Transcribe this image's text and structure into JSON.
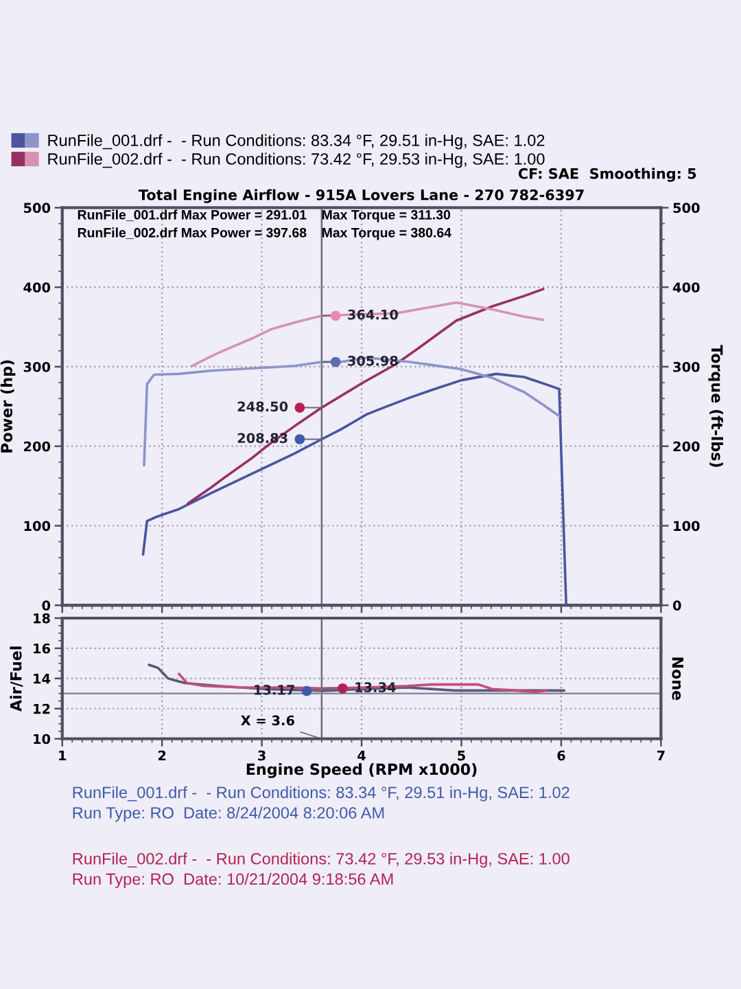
{
  "chart_data": [
    {
      "type": "line",
      "title": "Total Engine Airflow - 915A Lovers Lane - 270 782-6397",
      "ylabel": "Power (hp)",
      "y2label": "Torque (ft-lbs)",
      "xlim": [
        1,
        7
      ],
      "xticks": [
        1,
        2,
        3,
        4,
        5,
        6,
        7
      ],
      "ylim": [
        0,
        500
      ],
      "yticks": [
        0,
        100,
        200,
        300,
        400,
        500
      ],
      "y2lim": [
        0,
        500
      ],
      "y2ticks": [
        0,
        100,
        200,
        300,
        400,
        500
      ],
      "tick_labels": "y",
      "grid": true,
      "legend": "top left",
      "series": [
        {
          "name": "RunFile_001.drf -  - Run Conditions: 83.34 °F, 29.51 in-Hg, SAE: 1.02",
          "color": "#4b55a0",
          "x": [
            1.81,
            1.85,
            1.94,
            2.17,
            2.49,
            2.91,
            3.33,
            3.6,
            3.79,
            4.05,
            4.25,
            4.48,
            4.71,
            5.0,
            5.35,
            5.63,
            5.82,
            5.98,
            6.05
          ],
          "values": [
            64,
            106,
            111,
            121,
            141,
            166,
            191,
            208.83,
            221,
            240,
            250,
            261,
            271,
            283,
            291.01,
            287,
            279,
            272,
            0
          ]
        },
        {
          "axis": "y2",
          "color": "#8e94c8",
          "x": [
            1.82,
            1.85,
            1.92,
            2.17,
            2.49,
            2.91,
            3.33,
            3.6,
            3.79,
            4.05,
            4.25,
            4.48,
            4.71,
            5.0,
            5.31,
            5.63,
            5.82,
            5.98
          ],
          "values": [
            176,
            278,
            290,
            291,
            295,
            298,
            301,
            305.98,
            306,
            311.3,
            309,
            306,
            302,
            297,
            286,
            268,
            252,
            238
          ]
        },
        {
          "name": "RunFile_002.drf -  - Run Conditions: 73.42 °F, 29.53 in-Hg, SAE: 1.00",
          "color": "#983062",
          "x": [
            2.26,
            2.49,
            2.63,
            2.91,
            3.09,
            3.37,
            3.6,
            4.0,
            4.34,
            4.6,
            4.95,
            5.31,
            5.63,
            5.82
          ],
          "values": [
            128,
            148,
            161,
            186,
            204,
            229,
            248.5,
            279,
            303,
            326,
            358,
            376,
            389,
            397.68
          ]
        },
        {
          "axis": "y2",
          "color": "#d692b4",
          "x": [
            2.3,
            2.49,
            2.63,
            2.91,
            3.09,
            3.37,
            3.6,
            4.0,
            4.34,
            4.6,
            4.95,
            5.31,
            5.63,
            5.82
          ],
          "values": [
            301,
            313,
            321,
            336,
            347,
            357,
            364.1,
            366,
            367,
            373,
            380.64,
            372,
            363,
            359
          ]
        },
        {
          "type": "scatter",
          "color": "#3f5aa8",
          "x": [
            3.38
          ],
          "values": [
            208.83
          ],
          "value_labels": [
            "208.83"
          ]
        },
        {
          "type": "scatter",
          "axis": "y2",
          "color": "#5a6cb0",
          "x": [
            3.74
          ],
          "values": [
            305.98
          ],
          "value_labels": [
            "305.98"
          ]
        },
        {
          "type": "scatter",
          "color": "#b3224f",
          "x": [
            3.38
          ],
          "values": [
            248.5
          ],
          "value_labels": [
            "248.50"
          ]
        },
        {
          "type": "scatter",
          "axis": "y2",
          "color": "#e889b0",
          "x": [
            3.74
          ],
          "values": [
            364.1
          ],
          "value_labels": [
            "364.10"
          ]
        }
      ],
      "ref_lines": [
        {
          "axis": "x",
          "value": 3.6,
          "color": "#6a6a7a"
        }
      ],
      "annotations": [
        "CF: SAE  Smoothing: 5",
        "RunFile_001.drf Max Power = 291.01    Max Torque = 311.30",
        "RunFile_002.drf Max Power = 397.68    Max Torque = 380.64"
      ]
    },
    {
      "type": "line",
      "xlabel": "Engine Speed (RPM x1000)",
      "ylabel": "Air/Fuel",
      "y2label": "None",
      "xlim": [
        1,
        7
      ],
      "xticks": [
        1,
        2,
        3,
        4,
        5,
        6,
        7
      ],
      "ylim": [
        10,
        18
      ],
      "yticks": [
        10,
        12,
        14,
        16,
        18
      ],
      "grid": true,
      "series": [
        {
          "color": "#5a5878",
          "x": [
            1.87,
            1.96,
            2.06,
            2.23,
            2.56,
            3.03,
            3.6,
            4.03,
            4.46,
            4.93,
            5.17,
            5.65,
            6.03
          ],
          "values": [
            14.9,
            14.7,
            14.0,
            13.7,
            13.5,
            13.3,
            13.17,
            13.3,
            13.4,
            13.2,
            13.2,
            13.2,
            13.2
          ]
        },
        {
          "color": "#c0507a",
          "x": [
            2.17,
            2.25,
            2.42,
            2.8,
            3.27,
            3.6,
            4.03,
            4.46,
            4.7,
            5.17,
            5.31,
            5.55,
            5.74,
            5.85
          ],
          "values": [
            14.3,
            13.7,
            13.5,
            13.4,
            13.4,
            13.34,
            13.4,
            13.5,
            13.6,
            13.6,
            13.3,
            13.2,
            13.1,
            13.2
          ]
        },
        {
          "type": "scatter",
          "color": "#3f5aa8",
          "x": [
            3.45
          ],
          "values": [
            13.17
          ],
          "value_labels": [
            "13.17"
          ]
        },
        {
          "type": "scatter",
          "color": "#b3224f",
          "x": [
            3.81
          ],
          "values": [
            13.34
          ],
          "value_labels": [
            "13.34"
          ]
        }
      ],
      "ref_lines": [
        {
          "axis": "x",
          "value": 3.6,
          "label": "X = 3.6",
          "color": "#6a6a7a"
        },
        {
          "axis": "y",
          "value": 13,
          "color": "#8a8a9a"
        }
      ],
      "annotations": [
        "RunFile_001.drf -  - Run Conditions: 83.34 °F, 29.51 in-Hg, SAE: 1.02\nRun Type: RO  Date: 8/24/2004 8:20:06 AM",
        "RunFile_002.drf -  - Run Conditions: 73.42 °F, 29.53 in-Hg, SAE: 1.00\nRun Type: RO  Date: 10/21/2004 9:18:56 AM"
      ]
    }
  ]
}
